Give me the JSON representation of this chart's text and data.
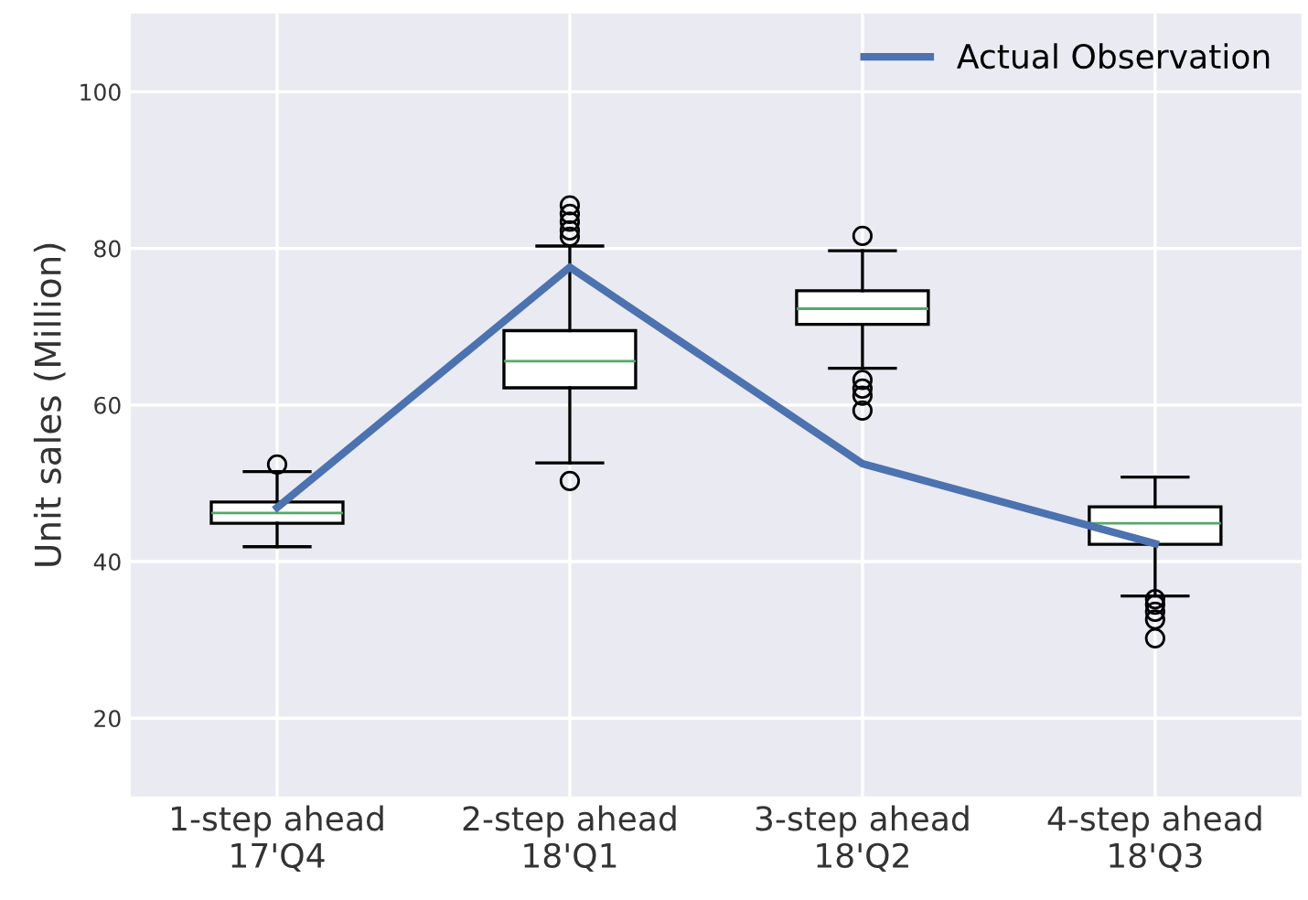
{
  "chart_data": {
    "type": "box",
    "ylabel": "Unit sales (Million)",
    "categories": [
      "1-step ahead\n17'Q4",
      "2-step ahead\n18'Q1",
      "3-step ahead\n18'Q2",
      "4-step ahead\n18'Q3"
    ],
    "boxes": [
      {
        "low": 41.9,
        "q1": 44.9,
        "median": 46.2,
        "q3": 47.6,
        "high": 51.5,
        "outliers": [
          52.4
        ]
      },
      {
        "low": 52.6,
        "q1": 62.2,
        "median": 65.6,
        "q3": 69.5,
        "high": 80.3,
        "outliers": [
          50.3,
          81.5,
          82.3,
          83.4,
          84.4,
          85.5
        ]
      },
      {
        "low": 64.7,
        "q1": 70.3,
        "median": 72.3,
        "q3": 74.6,
        "high": 79.7,
        "outliers": [
          59.3,
          61.2,
          62.1,
          63.2,
          81.6
        ]
      },
      {
        "low": 35.6,
        "q1": 42.2,
        "median": 44.9,
        "q3": 47.0,
        "high": 50.8,
        "outliers": [
          30.2,
          32.6,
          33.6,
          34.5,
          35.2
        ]
      }
    ],
    "series": [
      {
        "name": "Actual Observation",
        "type": "line",
        "color": "#4c72b0",
        "values": [
          46.9,
          77.6,
          52.5,
          42.3
        ]
      }
    ],
    "ylim": [
      10,
      110
    ],
    "yticks": [
      20,
      40,
      60,
      80,
      100
    ],
    "grid": true,
    "legend": "top right"
  }
}
